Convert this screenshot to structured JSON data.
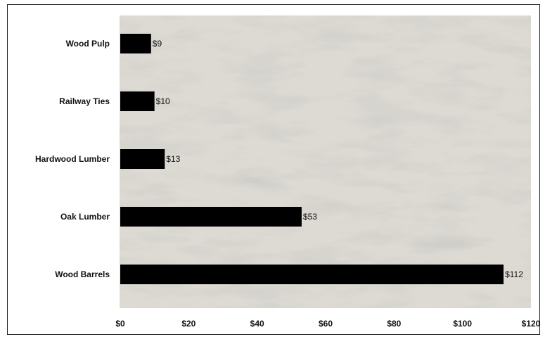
{
  "chart_data": {
    "type": "bar",
    "orientation": "horizontal",
    "categories": [
      "Wood Pulp",
      "Railway Ties",
      "Hardwood Lumber",
      "Oak Lumber",
      "Wood Barrels"
    ],
    "values": [
      9,
      10,
      13,
      53,
      112
    ],
    "data_labels": [
      "$9",
      "$10",
      "$13",
      "$53",
      "$112"
    ],
    "title": "",
    "xlabel": "",
    "ylabel": "",
    "xlim": [
      0,
      120
    ],
    "x_ticks": [
      0,
      20,
      40,
      60,
      80,
      100,
      120
    ],
    "x_tick_labels": [
      "$0",
      "$20",
      "$40",
      "$60",
      "$80",
      "$100",
      "$120"
    ],
    "grid": false,
    "legend": "none",
    "bar_color": "#000000",
    "background": "weathered gray wood-grain texture"
  }
}
